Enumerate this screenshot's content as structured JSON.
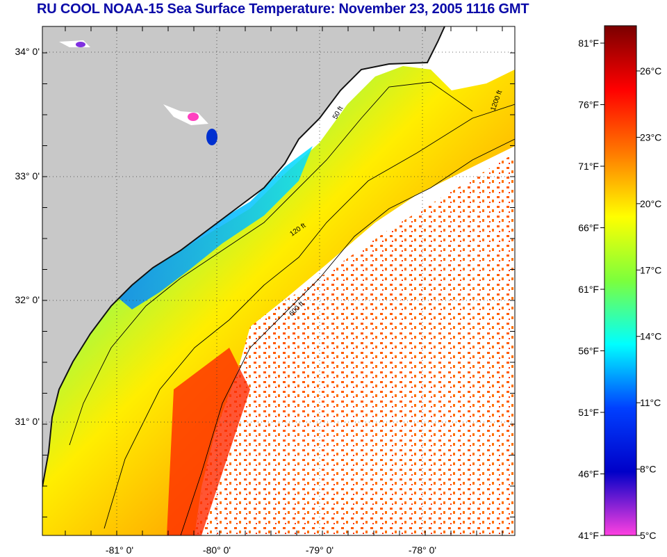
{
  "title": "RU COOL  NOAA-15  Sea Surface Temperature:  November 23, 2005 1116 GMT",
  "map": {
    "lat_labels": [
      "34° 0'",
      "33° 0'",
      "32° 0'",
      "31° 0'"
    ],
    "lon_labels": [
      "-81° 0'",
      "-80° 0'",
      "-79° 0'",
      "-78° 0'"
    ],
    "lat_values": [
      34,
      33,
      32,
      31
    ],
    "lon_values": [
      -81,
      -80,
      -79,
      -78
    ],
    "contours": [
      "50 ft",
      "120 ft",
      "600 ft",
      "1200 ft"
    ],
    "colors": {
      "land": "#c8c8c8",
      "cloud": "#ffffff",
      "coast": "#101010"
    }
  },
  "colorbar": {
    "fahrenheit": [
      "81°F",
      "76°F",
      "71°F",
      "66°F",
      "61°F",
      "56°F",
      "51°F",
      "46°F",
      "41°F"
    ],
    "celsius": [
      "26°C",
      "23°C",
      "20°C",
      "17°C",
      "14°C",
      "11°C",
      "8°C",
      "5°C"
    ],
    "stops": [
      "#7a0000",
      "#ff0000",
      "#ff7a00",
      "#ffff00",
      "#7cff3c",
      "#00ffff",
      "#0040ff",
      "#0000c8",
      "#ff40e0"
    ]
  }
}
